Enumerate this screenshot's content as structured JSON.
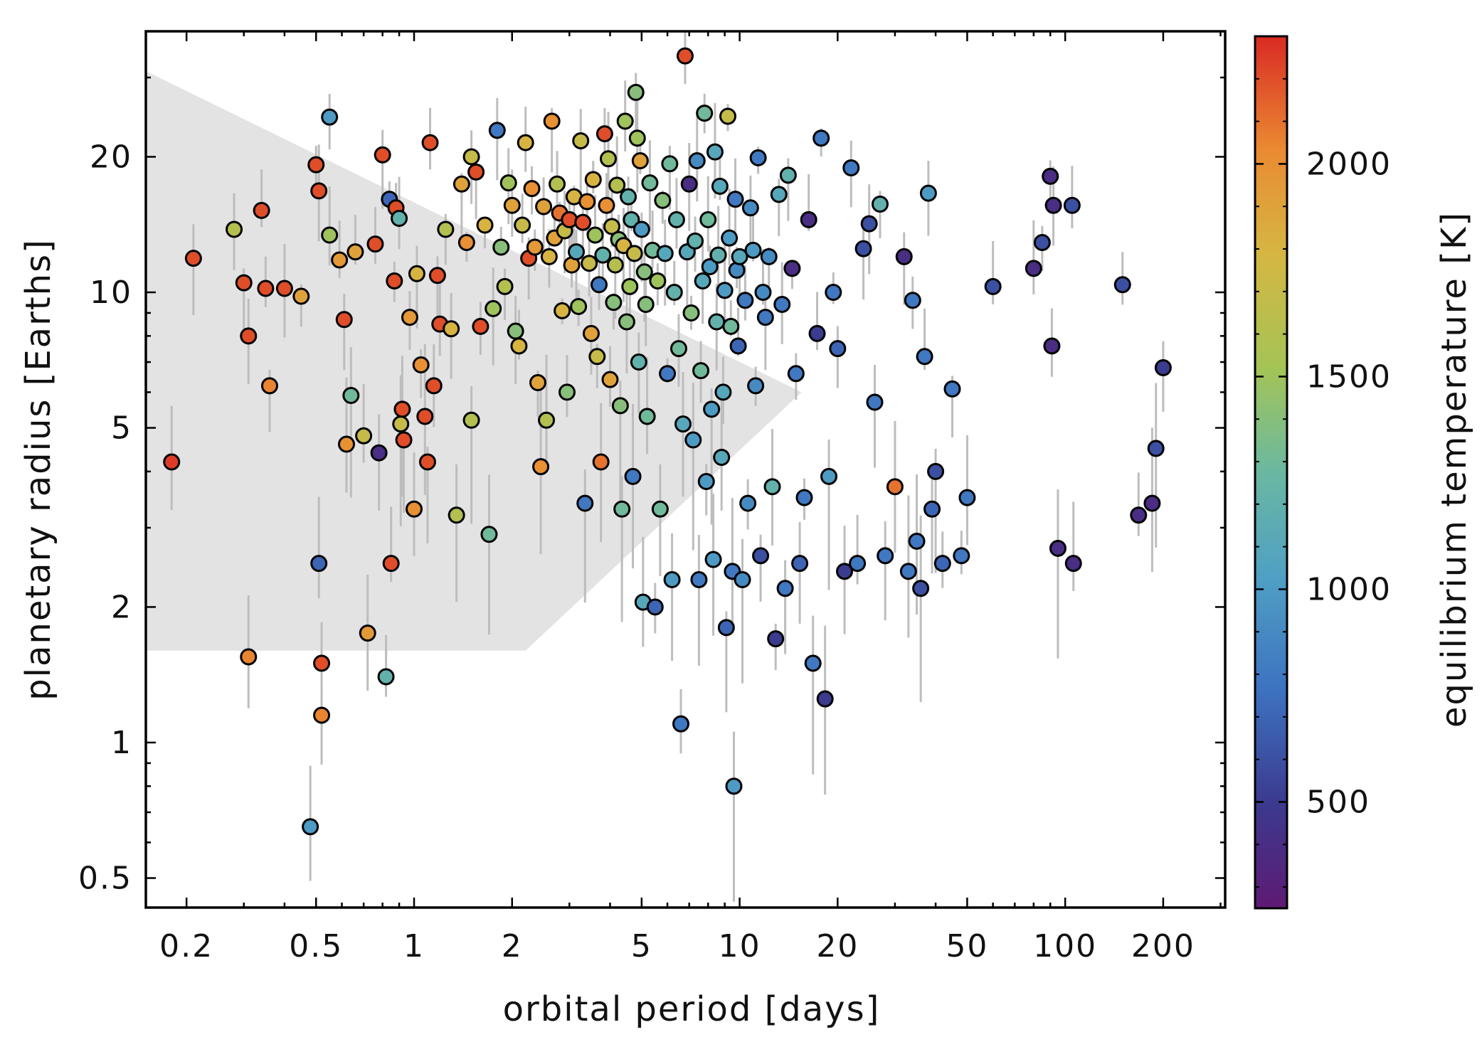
{
  "chart_data": {
    "type": "scatter",
    "title": "",
    "xlabel": "orbital period [days]",
    "ylabel": "planetary radius [Earths]",
    "x_scale": "log",
    "y_scale": "log",
    "xlim": [
      0.15,
      310
    ],
    "ylim": [
      0.43,
      38
    ],
    "x_ticks": [
      0.2,
      0.5,
      1,
      2,
      5,
      10,
      20,
      50,
      100,
      200
    ],
    "x_tick_labels": [
      "0.2",
      "0.5",
      "1",
      "2",
      "5",
      "10",
      "20",
      "50",
      "100",
      "200"
    ],
    "y_ticks": [
      0.5,
      1,
      2,
      5,
      10,
      20
    ],
    "y_tick_labels": [
      "0.5",
      "1",
      "2",
      "5",
      "10",
      "20"
    ],
    "colorbar": {
      "label": "equilibrium temperature [K]",
      "range": [
        250,
        2300
      ],
      "ticks": [
        500,
        1000,
        1500,
        2000
      ],
      "tick_labels": [
        "500",
        "1000",
        "1500",
        "2000"
      ],
      "colormap": "spectral-rainbow"
    },
    "shaded_region": {
      "description": "neptune desert",
      "polygon": [
        [
          0.15,
          31
        ],
        [
          15.5,
          6.0
        ],
        [
          2.2,
          1.6
        ],
        [
          0.15,
          1.6
        ]
      ]
    },
    "points": [
      [
        0.18,
        4.2,
        2250
      ],
      [
        0.21,
        11.9,
        2200
      ],
      [
        0.28,
        13.8,
        1600
      ],
      [
        0.3,
        10.5,
        2200
      ],
      [
        0.31,
        8.0,
        2200
      ],
      [
        0.31,
        1.55,
        2050
      ],
      [
        0.34,
        15.2,
        2200
      ],
      [
        0.35,
        10.2,
        2200
      ],
      [
        0.36,
        6.2,
        2050
      ],
      [
        0.4,
        10.2,
        2200
      ],
      [
        0.45,
        9.8,
        1900
      ],
      [
        0.48,
        0.65,
        1000
      ],
      [
        0.5,
        19.2,
        2200
      ],
      [
        0.51,
        16.8,
        2200
      ],
      [
        0.52,
        1.5,
        2200
      ],
      [
        0.51,
        2.5,
        700
      ],
      [
        0.52,
        1.15,
        2050
      ],
      [
        0.55,
        24.5,
        1000
      ],
      [
        0.55,
        13.4,
        1500
      ],
      [
        0.59,
        11.8,
        1950
      ],
      [
        0.61,
        8.7,
        2200
      ],
      [
        0.62,
        4.6,
        2000
      ],
      [
        0.64,
        5.9,
        1300
      ],
      [
        0.66,
        12.3,
        1900
      ],
      [
        0.7,
        4.8,
        1700
      ],
      [
        0.72,
        1.75,
        1950
      ],
      [
        0.76,
        12.8,
        2200
      ],
      [
        0.78,
        4.4,
        400
      ],
      [
        0.8,
        20.2,
        2200
      ],
      [
        0.82,
        1.4,
        1200
      ],
      [
        0.84,
        16.1,
        700
      ],
      [
        0.85,
        2.5,
        2200
      ],
      [
        0.87,
        10.6,
        2200
      ],
      [
        0.88,
        15.4,
        2200
      ],
      [
        0.9,
        14.6,
        1200
      ],
      [
        0.91,
        5.1,
        1700
      ],
      [
        0.92,
        5.5,
        2200
      ],
      [
        0.93,
        4.7,
        2200
      ],
      [
        0.97,
        8.8,
        1950
      ],
      [
        1.0,
        3.3,
        2000
      ],
      [
        1.02,
        11.0,
        1800
      ],
      [
        1.05,
        6.9,
        2000
      ],
      [
        1.08,
        5.3,
        2200
      ],
      [
        1.1,
        4.2,
        2200
      ],
      [
        1.12,
        21.5,
        2200
      ],
      [
        1.15,
        6.2,
        2200
      ],
      [
        1.18,
        10.9,
        2200
      ],
      [
        1.2,
        8.5,
        2200
      ],
      [
        1.25,
        13.8,
        1600
      ],
      [
        1.3,
        8.3,
        1800
      ],
      [
        1.35,
        3.2,
        1600
      ],
      [
        1.4,
        17.4,
        1900
      ],
      [
        1.45,
        12.9,
        2000
      ],
      [
        1.5,
        20.0,
        1700
      ],
      [
        1.5,
        5.2,
        1600
      ],
      [
        1.55,
        18.5,
        2200
      ],
      [
        1.6,
        8.4,
        2200
      ],
      [
        1.65,
        14.1,
        1800
      ],
      [
        1.7,
        2.9,
        1300
      ],
      [
        1.75,
        9.2,
        1500
      ],
      [
        1.8,
        22.9,
        800
      ],
      [
        1.85,
        12.6,
        1400
      ],
      [
        1.9,
        10.3,
        1600
      ],
      [
        1.95,
        17.5,
        1500
      ],
      [
        2.0,
        15.6,
        1900
      ],
      [
        2.05,
        8.2,
        1400
      ],
      [
        2.1,
        7.6,
        1800
      ],
      [
        2.15,
        14.1,
        1700
      ],
      [
        2.2,
        21.5,
        1800
      ],
      [
        2.25,
        11.9,
        2200
      ],
      [
        2.3,
        17.0,
        2000
      ],
      [
        2.35,
        12.6,
        1950
      ],
      [
        2.4,
        6.3,
        1900
      ],
      [
        2.45,
        4.1,
        2000
      ],
      [
        2.5,
        15.5,
        1900
      ],
      [
        2.55,
        5.2,
        1600
      ],
      [
        2.6,
        12.0,
        1800
      ],
      [
        2.65,
        24.0,
        2000
      ],
      [
        2.7,
        13.2,
        1900
      ],
      [
        2.75,
        17.4,
        1600
      ],
      [
        2.8,
        15.0,
        2100
      ],
      [
        2.85,
        9.1,
        1800
      ],
      [
        2.9,
        13.7,
        1700
      ],
      [
        2.95,
        6.0,
        1400
      ],
      [
        3.0,
        14.5,
        2200
      ],
      [
        3.05,
        11.5,
        1900
      ],
      [
        3.1,
        16.3,
        1800
      ],
      [
        3.15,
        12.3,
        1100
      ],
      [
        3.2,
        9.3,
        1500
      ],
      [
        3.25,
        21.7,
        1700
      ],
      [
        3.3,
        14.3,
        2200
      ],
      [
        3.35,
        3.4,
        800
      ],
      [
        3.4,
        15.9,
        2000
      ],
      [
        3.45,
        11.6,
        1700
      ],
      [
        3.5,
        8.1,
        1900
      ],
      [
        3.55,
        17.8,
        1800
      ],
      [
        3.6,
        13.4,
        1500
      ],
      [
        3.65,
        7.2,
        1700
      ],
      [
        3.7,
        10.4,
        800
      ],
      [
        3.75,
        4.2,
        2100
      ],
      [
        3.8,
        12.1,
        1200
      ],
      [
        3.85,
        22.5,
        2200
      ],
      [
        3.9,
        15.6,
        2000
      ],
      [
        3.95,
        19.8,
        1600
      ],
      [
        4.0,
        6.4,
        1900
      ],
      [
        4.05,
        14.0,
        1700
      ],
      [
        4.1,
        9.5,
        1400
      ],
      [
        4.15,
        11.5,
        1600
      ],
      [
        4.2,
        17.3,
        1600
      ],
      [
        4.25,
        13.1,
        1400
      ],
      [
        4.3,
        5.6,
        1400
      ],
      [
        4.35,
        3.3,
        1300
      ],
      [
        4.4,
        12.7,
        1800
      ],
      [
        4.45,
        24.0,
        1500
      ],
      [
        4.5,
        8.6,
        1400
      ],
      [
        4.55,
        16.3,
        1200
      ],
      [
        4.6,
        10.3,
        1500
      ],
      [
        4.65,
        14.5,
        1200
      ],
      [
        4.7,
        3.9,
        800
      ],
      [
        4.75,
        12.2,
        1700
      ],
      [
        4.8,
        27.8,
        1400
      ],
      [
        4.85,
        22.0,
        1500
      ],
      [
        4.9,
        7.0,
        1200
      ],
      [
        4.95,
        19.6,
        1900
      ],
      [
        5.0,
        13.8,
        1000
      ],
      [
        5.05,
        2.05,
        1100
      ],
      [
        5.1,
        11.1,
        1400
      ],
      [
        5.15,
        9.4,
        1400
      ],
      [
        5.2,
        5.3,
        1300
      ],
      [
        5.3,
        17.5,
        1300
      ],
      [
        5.4,
        12.4,
        1300
      ],
      [
        5.5,
        2.0,
        700
      ],
      [
        5.6,
        10.6,
        1500
      ],
      [
        5.7,
        3.3,
        1300
      ],
      [
        5.8,
        16.0,
        1400
      ],
      [
        5.9,
        12.2,
        1100
      ],
      [
        6.0,
        6.6,
        800
      ],
      [
        6.1,
        19.3,
        1300
      ],
      [
        6.2,
        2.3,
        1000
      ],
      [
        6.3,
        10.0,
        1200
      ],
      [
        6.4,
        14.5,
        1200
      ],
      [
        6.5,
        7.5,
        1300
      ],
      [
        6.6,
        1.1,
        800
      ],
      [
        6.7,
        5.1,
        1100
      ],
      [
        6.8,
        33.5,
        2200
      ],
      [
        6.9,
        12.3,
        1100
      ],
      [
        7.0,
        17.4,
        400
      ],
      [
        7.1,
        9.0,
        1400
      ],
      [
        7.2,
        4.7,
        1000
      ],
      [
        7.3,
        13.0,
        1200
      ],
      [
        7.4,
        19.6,
        900
      ],
      [
        7.5,
        2.3,
        800
      ],
      [
        7.6,
        6.7,
        1300
      ],
      [
        7.7,
        10.6,
        1100
      ],
      [
        7.8,
        25.0,
        1300
      ],
      [
        7.9,
        3.8,
        1000
      ],
      [
        8.0,
        14.5,
        1300
      ],
      [
        8.1,
        11.4,
        1000
      ],
      [
        8.2,
        5.5,
        1000
      ],
      [
        8.3,
        2.55,
        1000
      ],
      [
        8.4,
        20.5,
        1100
      ],
      [
        8.5,
        8.6,
        1200
      ],
      [
        8.6,
        12.1,
        1200
      ],
      [
        8.7,
        17.2,
        1100
      ],
      [
        8.8,
        4.3,
        1100
      ],
      [
        8.9,
        6.0,
        1100
      ],
      [
        9.0,
        10.1,
        1000
      ],
      [
        9.1,
        1.8,
        700
      ],
      [
        9.2,
        24.6,
        1700
      ],
      [
        9.3,
        13.2,
        1000
      ],
      [
        9.4,
        8.4,
        1300
      ],
      [
        9.5,
        2.4,
        800
      ],
      [
        9.6,
        0.8,
        1000
      ],
      [
        9.7,
        16.1,
        800
      ],
      [
        9.8,
        11.2,
        900
      ],
      [
        9.9,
        7.6,
        700
      ],
      [
        10.0,
        12.0,
        1100
      ],
      [
        10.2,
        2.3,
        900
      ],
      [
        10.4,
        9.6,
        800
      ],
      [
        10.6,
        3.4,
        900
      ],
      [
        10.8,
        15.4,
        900
      ],
      [
        11.0,
        12.4,
        1000
      ],
      [
        11.2,
        6.2,
        900
      ],
      [
        11.4,
        19.9,
        800
      ],
      [
        11.6,
        2.6,
        600
      ],
      [
        11.8,
        10.0,
        900
      ],
      [
        12.0,
        8.8,
        800
      ],
      [
        12.3,
        12.0,
        900
      ],
      [
        12.6,
        3.7,
        1200
      ],
      [
        12.9,
        1.7,
        500
      ],
      [
        13.2,
        16.5,
        1100
      ],
      [
        13.5,
        9.4,
        800
      ],
      [
        13.8,
        2.2,
        800
      ],
      [
        14.1,
        18.2,
        1200
      ],
      [
        14.5,
        11.3,
        400
      ],
      [
        14.9,
        6.6,
        800
      ],
      [
        15.3,
        2.5,
        700
      ],
      [
        15.8,
        3.5,
        800
      ],
      [
        16.3,
        14.5,
        400
      ],
      [
        16.8,
        1.5,
        800
      ],
      [
        17.3,
        8.1,
        500
      ],
      [
        17.8,
        22.0,
        800
      ],
      [
        18.3,
        1.25,
        500
      ],
      [
        18.8,
        3.9,
        1000
      ],
      [
        19.4,
        10.0,
        800
      ],
      [
        20.0,
        7.5,
        700
      ],
      [
        21.0,
        2.4,
        500
      ],
      [
        22.0,
        18.9,
        800
      ],
      [
        23.0,
        2.5,
        800
      ],
      [
        24.0,
        12.5,
        600
      ],
      [
        25.0,
        14.2,
        600
      ],
      [
        26.0,
        5.7,
        800
      ],
      [
        27.0,
        15.7,
        1200
      ],
      [
        28.0,
        2.6,
        800
      ],
      [
        30.0,
        3.7,
        2100
      ],
      [
        32.0,
        12.0,
        400
      ],
      [
        33.0,
        2.4,
        800
      ],
      [
        34.0,
        9.6,
        800
      ],
      [
        35.0,
        2.8,
        800
      ],
      [
        36.0,
        2.2,
        600
      ],
      [
        37.0,
        7.2,
        800
      ],
      [
        38.0,
        16.6,
        1000
      ],
      [
        39.0,
        3.3,
        700
      ],
      [
        40.0,
        4.0,
        600
      ],
      [
        42.0,
        2.5,
        700
      ],
      [
        45.0,
        6.1,
        800
      ],
      [
        48.0,
        2.6,
        800
      ],
      [
        50.0,
        3.5,
        800
      ],
      [
        60.0,
        10.3,
        600
      ],
      [
        80.0,
        11.3,
        400
      ],
      [
        85.0,
        12.9,
        600
      ],
      [
        90.0,
        18.1,
        400
      ],
      [
        91.0,
        7.6,
        400
      ],
      [
        92.0,
        15.6,
        400
      ],
      [
        95.0,
        2.7,
        400
      ],
      [
        105.0,
        15.6,
        600
      ],
      [
        106.0,
        2.5,
        400
      ],
      [
        150.0,
        10.4,
        600
      ],
      [
        168.0,
        3.2,
        400
      ],
      [
        185.0,
        3.4,
        400
      ],
      [
        190.0,
        4.5,
        600
      ],
      [
        200.0,
        6.8,
        500
      ]
    ]
  }
}
